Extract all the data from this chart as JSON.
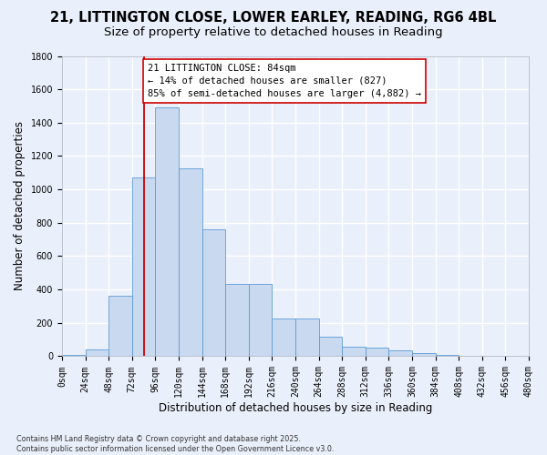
{
  "title_line1": "21, LITTINGTON CLOSE, LOWER EARLEY, READING, RG6 4BL",
  "title_line2": "Size of property relative to detached houses in Reading",
  "xlabel": "Distribution of detached houses by size in Reading",
  "ylabel": "Number of detached properties",
  "bar_values": [
    10,
    40,
    360,
    1070,
    1490,
    1125,
    760,
    435,
    435,
    225,
    225,
    115,
    55,
    50,
    35,
    20,
    10,
    5,
    2,
    1
  ],
  "bin_left_edges": [
    0,
    24,
    48,
    72,
    96,
    120,
    144,
    168,
    192,
    216,
    240,
    264,
    288,
    312,
    336,
    360,
    384,
    408,
    432,
    456
  ],
  "bin_labels": [
    "0sqm",
    "24sqm",
    "48sqm",
    "72sqm",
    "96sqm",
    "120sqm",
    "144sqm",
    "168sqm",
    "192sqm",
    "216sqm",
    "240sqm",
    "264sqm",
    "288sqm",
    "312sqm",
    "336sqm",
    "360sqm",
    "384sqm",
    "408sqm",
    "432sqm",
    "456sqm",
    "480sqm"
  ],
  "bar_color": "#c8d9f0",
  "bar_edge_color": "#5b9bd5",
  "background_color": "#eaf0fb",
  "grid_color": "#ffffff",
  "vline_x": 84,
  "vline_color": "#cc0000",
  "annotation_text": "21 LITTINGTON CLOSE: 84sqm\n← 14% of detached houses are smaller (827)\n85% of semi-detached houses are larger (4,882) →",
  "annotation_box_color": "#ffffff",
  "annotation_box_edge": "#cc0000",
  "ylim": [
    0,
    1800
  ],
  "yticks": [
    0,
    200,
    400,
    600,
    800,
    1000,
    1200,
    1400,
    1600,
    1800
  ],
  "xlim": [
    0,
    480
  ],
  "bin_width": 24,
  "footnote": "Contains HM Land Registry data © Crown copyright and database right 2025.\nContains public sector information licensed under the Open Government Licence v3.0.",
  "title_fontsize": 10.5,
  "subtitle_fontsize": 9.5,
  "axis_label_fontsize": 8.5,
  "tick_fontsize": 7,
  "annotation_fontsize": 7.5
}
